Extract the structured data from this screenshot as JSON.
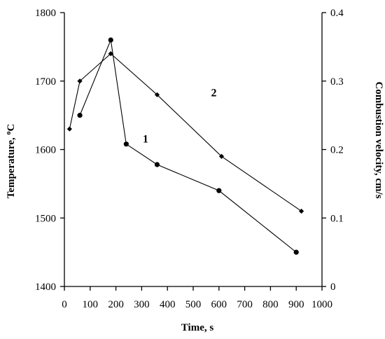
{
  "chart_data": {
    "type": "line",
    "xlabel": "Time, s",
    "ylabel_left": "Temperature, °C",
    "ylabel_left_parts": [
      "Temperature, ",
      "o",
      "C"
    ],
    "ylabel_right": "Combustion velocity, cm/s",
    "xlim": [
      0,
      1000
    ],
    "ylim_left": [
      1400,
      1800
    ],
    "ylim_right": [
      0,
      0.4
    ],
    "x_ticks": [
      0,
      100,
      200,
      300,
      400,
      500,
      600,
      700,
      800,
      900,
      1000
    ],
    "x_tick_labels": [
      "0",
      "100",
      "200",
      "300",
      "400",
      "500",
      "600",
      "700",
      "800",
      "900",
      "1000"
    ],
    "y_left_ticks": [
      1400,
      1500,
      1600,
      1700,
      1800
    ],
    "y_left_tick_labels": [
      "1400",
      "1500",
      "1600",
      "1700",
      "1800"
    ],
    "y_right_ticks": [
      0,
      0.1,
      0.2,
      0.3,
      0.4
    ],
    "y_right_tick_labels": [
      "0",
      "0.1",
      "0.2",
      "0.3",
      "0.4"
    ],
    "grid": false,
    "series": [
      {
        "name": "1",
        "axis": "left",
        "marker": "circle",
        "x": [
          60,
          180,
          240,
          360,
          600,
          900
        ],
        "y": [
          1650,
          1760,
          1608,
          1578,
          1540,
          1450
        ],
        "label_at": [
          315,
          1610
        ]
      },
      {
        "name": "2",
        "axis": "right",
        "marker": "diamond",
        "x": [
          20,
          60,
          180,
          360,
          610,
          920
        ],
        "y": [
          0.23,
          0.3,
          0.34,
          0.28,
          0.19,
          0.11
        ],
        "label_at": [
          580,
          0.278
        ]
      }
    ]
  }
}
